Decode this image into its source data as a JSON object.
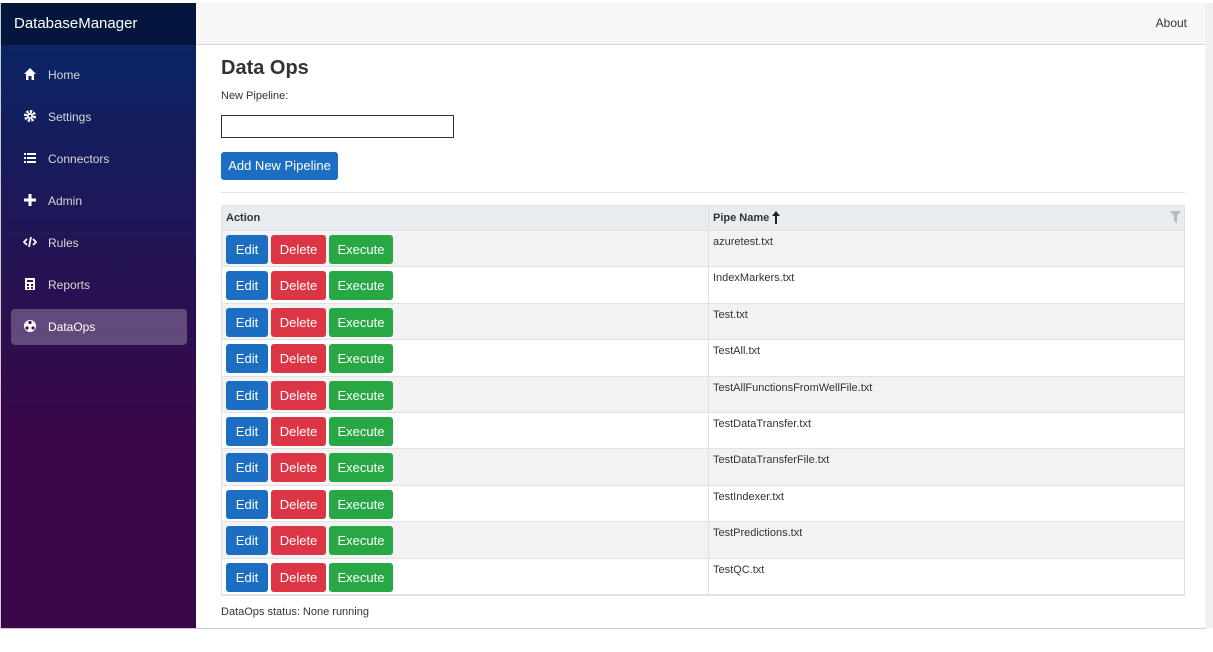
{
  "brand": "DatabaseManager",
  "nav": [
    "Home",
    "Settings",
    "Connectors",
    "Admin",
    "Rules",
    "Reports",
    "DataOps"
  ],
  "top_link": "About",
  "title": "Data Ops",
  "new_label": "New Pipeline:",
  "add_button": "Add New Pipeline",
  "table": {
    "headers": [
      "Action",
      "Pipe Name"
    ],
    "actions": [
      "Edit",
      "Delete",
      "Execute"
    ],
    "rows": [
      "azuretest.txt",
      "IndexMarkers.txt",
      "Test.txt",
      "TestAll.txt",
      "TestAllFunctionsFromWellFile.txt",
      "TestDataTransfer.txt",
      "TestDataTransferFile.txt",
      "TestIndexer.txt",
      "TestPredictions.txt",
      "TestQC.txt"
    ]
  },
  "status": "DataOps status: None running"
}
